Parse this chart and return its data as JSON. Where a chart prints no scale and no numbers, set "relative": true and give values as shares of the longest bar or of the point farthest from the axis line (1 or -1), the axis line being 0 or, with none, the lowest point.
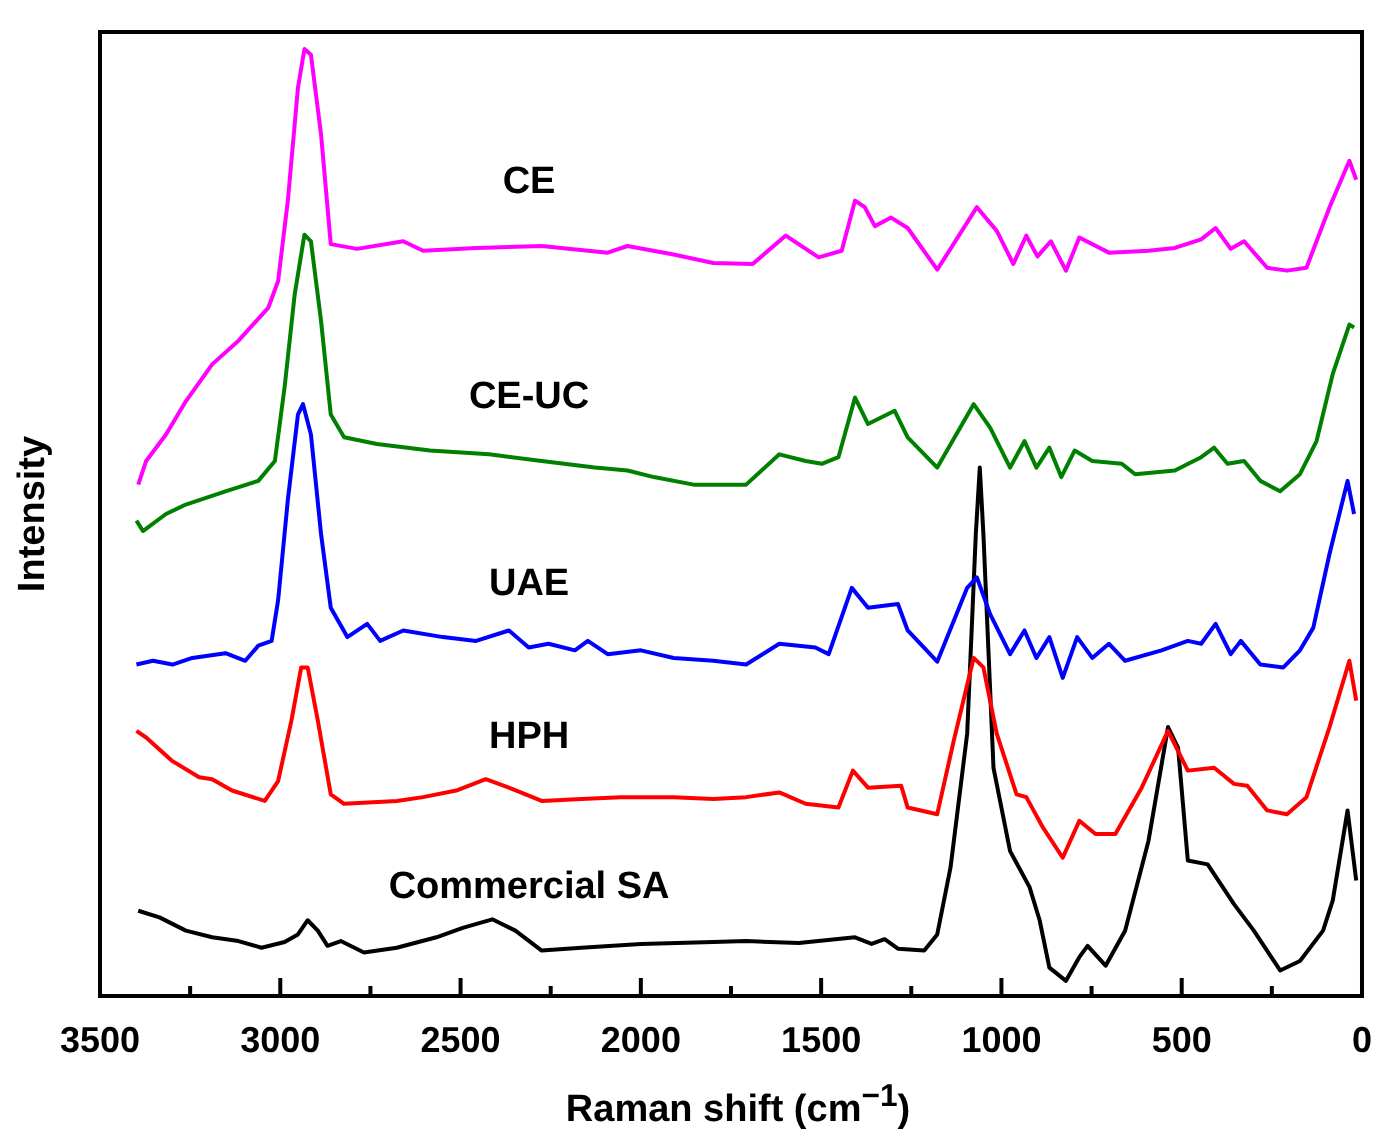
{
  "chart_data": {
    "type": "line",
    "xlabel": "Raman shift (cm$^{−1}$)",
    "ylabel": "Intensity",
    "relative": true,
    "xlim": [
      3500,
      0
    ],
    "xticks": [
      3500,
      {
        "value": 3250,
        "label": null
      },
      3000,
      {
        "value": 2750,
        "label": null
      },
      2500,
      {
        "value": 2250,
        "label": null
      },
      2000,
      {
        "value": 1750,
        "label": null
      },
      1500,
      {
        "value": 1250,
        "label": null
      },
      1000,
      {
        "value": 750,
        "label": null
      },
      500,
      {
        "value": 250,
        "label": null
      },
      0
    ],
    "grid": false,
    "legend": false,
    "marker": "none",
    "line_style": "solid",
    "series": [
      {
        "name": "CE",
        "color": "#ff00ff",
        "x": [
          3394,
          3372,
          3317,
          3262,
          3189,
          3116,
          3033,
          3006,
          2979,
          2951,
          2933,
          2915,
          2887,
          2860,
          2787,
          2659,
          2604,
          2457,
          2275,
          2092,
          2037,
          1909,
          1799,
          1690,
          1598,
          1507,
          1443,
          1406,
          1379,
          1351,
          1306,
          1260,
          1178,
          1068,
          1013,
          967,
          931,
          900,
          863,
          821,
          784,
          702,
          592,
          519,
          446,
          406,
          364,
          327,
          263,
          208,
          154,
          90,
          35,
          16
        ],
        "values": [
          0.54,
          0.565,
          0.593,
          0.628,
          0.667,
          0.692,
          0.727,
          0.755,
          0.84,
          0.959,
          1,
          0.994,
          0.91,
          0.794,
          0.789,
          0.797,
          0.787,
          0.79,
          0.792,
          0.785,
          0.792,
          0.783,
          0.774,
          0.773,
          0.803,
          0.78,
          0.787,
          0.84,
          0.833,
          0.813,
          0.822,
          0.811,
          0.767,
          0.833,
          0.808,
          0.773,
          0.803,
          0.781,
          0.797,
          0.766,
          0.801,
          0.785,
          0.787,
          0.79,
          0.799,
          0.811,
          0.789,
          0.797,
          0.769,
          0.766,
          0.769,
          0.833,
          0.882,
          0.862
        ]
      },
      {
        "name": "CE-UC",
        "color": "#008000",
        "x": [
          3399,
          3381,
          3317,
          3262,
          3152,
          3061,
          3015,
          2988,
          2960,
          2933,
          2915,
          2887,
          2860,
          2823,
          2732,
          2585,
          2421,
          2275,
          2128,
          2037,
          1964,
          1854,
          1708,
          1616,
          1543,
          1498,
          1452,
          1406,
          1370,
          1296,
          1260,
          1178,
          1077,
          1031,
          976,
          936,
          903,
          867,
          834,
          797,
          748,
          666,
          629,
          519,
          446,
          410,
          373,
          327,
          282,
          227,
          172,
          126,
          81,
          35,
          22
        ],
        "values": [
          0.502,
          0.491,
          0.509,
          0.519,
          0.533,
          0.544,
          0.565,
          0.643,
          0.741,
          0.804,
          0.797,
          0.713,
          0.614,
          0.59,
          0.583,
          0.576,
          0.572,
          0.565,
          0.558,
          0.555,
          0.548,
          0.54,
          0.54,
          0.572,
          0.565,
          0.562,
          0.569,
          0.632,
          0.604,
          0.618,
          0.59,
          0.558,
          0.625,
          0.6,
          0.558,
          0.586,
          0.558,
          0.579,
          0.548,
          0.576,
          0.565,
          0.562,
          0.551,
          0.555,
          0.569,
          0.579,
          0.562,
          0.565,
          0.544,
          0.533,
          0.551,
          0.586,
          0.657,
          0.709,
          0.706
        ]
      },
      {
        "name": "UAE",
        "color": "#0000ff",
        "x": [
          3399,
          3353,
          3299,
          3244,
          3152,
          3097,
          3061,
          3024,
          3006,
          2979,
          2951,
          2937,
          2915,
          2887,
          2860,
          2814,
          2759,
          2723,
          2659,
          2549,
          2457,
          2366,
          2311,
          2256,
          2183,
          2147,
          2092,
          2000,
          1909,
          1799,
          1708,
          1616,
          1516,
          1479,
          1415,
          1370,
          1287,
          1260,
          1178,
          1095,
          1068,
          1031,
          976,
          936,
          903,
          867,
          830,
          790,
          748,
          702,
          657,
          556,
          483,
          446,
          406,
          364,
          336,
          282,
          218,
          172,
          135,
          90,
          40,
          22
        ],
        "values": [
          0.35,
          0.354,
          0.35,
          0.357,
          0.362,
          0.354,
          0.37,
          0.375,
          0.418,
          0.524,
          0.614,
          0.625,
          0.593,
          0.488,
          0.41,
          0.379,
          0.393,
          0.375,
          0.386,
          0.379,
          0.375,
          0.386,
          0.368,
          0.372,
          0.365,
          0.375,
          0.361,
          0.365,
          0.357,
          0.354,
          0.35,
          0.372,
          0.368,
          0.361,
          0.431,
          0.41,
          0.414,
          0.386,
          0.353,
          0.431,
          0.442,
          0.403,
          0.361,
          0.386,
          0.357,
          0.379,
          0.336,
          0.379,
          0.357,
          0.372,
          0.354,
          0.365,
          0.375,
          0.372,
          0.393,
          0.361,
          0.375,
          0.35,
          0.347,
          0.365,
          0.389,
          0.467,
          0.544,
          0.509
        ]
      },
      {
        "name": "HPH",
        "color": "#ff0000",
        "x": [
          3399,
          3372,
          3299,
          3225,
          3189,
          3134,
          3043,
          3006,
          2969,
          2942,
          2924,
          2896,
          2860,
          2823,
          2677,
          2604,
          2512,
          2430,
          2366,
          2275,
          2165,
          2055,
          1909,
          1799,
          1708,
          1616,
          1543,
          1452,
          1412,
          1370,
          1278,
          1260,
          1178,
          1132,
          1077,
          1050,
          1013,
          958,
          931,
          885,
          830,
          784,
          739,
          684,
          611,
          538,
          483,
          410,
          355,
          318,
          263,
          208,
          154,
          90,
          35,
          16
        ],
        "values": [
          0.28,
          0.273,
          0.248,
          0.231,
          0.229,
          0.217,
          0.206,
          0.227,
          0.291,
          0.347,
          0.347,
          0.291,
          0.213,
          0.203,
          0.206,
          0.21,
          0.217,
          0.229,
          0.22,
          0.206,
          0.208,
          0.21,
          0.21,
          0.208,
          0.21,
          0.215,
          0.203,
          0.199,
          0.238,
          0.22,
          0.222,
          0.199,
          0.192,
          0.27,
          0.357,
          0.347,
          0.277,
          0.213,
          0.21,
          0.178,
          0.146,
          0.185,
          0.171,
          0.171,
          0.22,
          0.28,
          0.238,
          0.241,
          0.224,
          0.222,
          0.196,
          0.192,
          0.21,
          0.284,
          0.354,
          0.312
        ]
      },
      {
        "name": "Commercial SA",
        "color": "#000000",
        "x": [
          3394,
          3335,
          3262,
          3189,
          3116,
          3052,
          2988,
          2951,
          2924,
          2896,
          2869,
          2832,
          2768,
          2677,
          2567,
          2494,
          2412,
          2348,
          2275,
          2165,
          2000,
          1799,
          1708,
          1562,
          1406,
          1360,
          1324,
          1287,
          1214,
          1178,
          1141,
          1095,
          1071,
          1060,
          1050,
          1022,
          976,
          922,
          894,
          867,
          821,
          784,
          761,
          711,
          657,
          592,
          538,
          510,
          483,
          428,
          355,
          300,
          227,
          172,
          108,
          81,
          40,
          16
        ],
        "values": [
          0.09,
          0.083,
          0.069,
          0.062,
          0.058,
          0.051,
          0.057,
          0.065,
          0.08,
          0.069,
          0.053,
          0.058,
          0.046,
          0.051,
          0.062,
          0.072,
          0.081,
          0.069,
          0.048,
          0.051,
          0.055,
          0.057,
          0.058,
          0.056,
          0.062,
          0.055,
          0.06,
          0.05,
          0.048,
          0.065,
          0.136,
          0.277,
          0.488,
          0.558,
          0.488,
          0.241,
          0.153,
          0.115,
          0.08,
          0.03,
          0.016,
          0.041,
          0.053,
          0.032,
          0.069,
          0.164,
          0.284,
          0.262,
          0.143,
          0.139,
          0.097,
          0.069,
          0.027,
          0.037,
          0.069,
          0.101,
          0.196,
          0.122
        ]
      }
    ]
  }
}
